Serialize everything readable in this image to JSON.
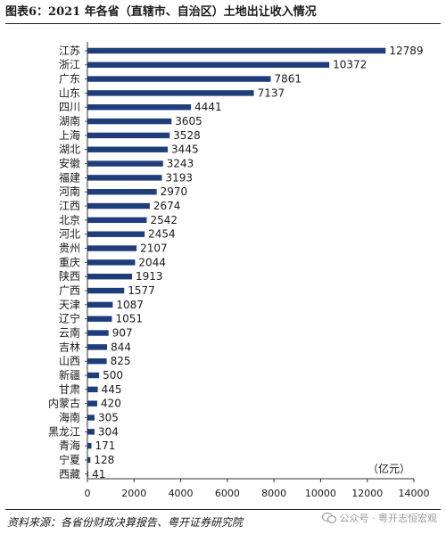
{
  "figure": {
    "title": "图表6：2021 年各省（直辖市、自治区）土地出让收入情况",
    "source": "资料来源：各省份财政决算报告、粤开证券研究院",
    "watermark": "公众号 · 粤开志恒宏观"
  },
  "chart_data": {
    "type": "bar",
    "orientation": "horizontal",
    "title": "图表6：2021 年各省（直辖市、自治区）土地出让收入情况",
    "unit": "（亿元）",
    "categories": [
      "江苏",
      "浙江",
      "广东",
      "山东",
      "四川",
      "湖南",
      "上海",
      "湖北",
      "安徽",
      "福建",
      "河南",
      "江西",
      "北京",
      "河北",
      "贵州",
      "重庆",
      "陕西",
      "广西",
      "天津",
      "辽宁",
      "云南",
      "吉林",
      "山西",
      "新疆",
      "甘肃",
      "内蒙古",
      "海南",
      "黑龙江",
      "青海",
      "宁夏",
      "西藏"
    ],
    "values": [
      12789,
      10372,
      7861,
      7137,
      4441,
      3605,
      3528,
      3445,
      3243,
      3193,
      2970,
      2674,
      2542,
      2454,
      2107,
      2044,
      1913,
      1577,
      1087,
      1051,
      907,
      844,
      825,
      500,
      445,
      420,
      305,
      304,
      171,
      128,
      41
    ],
    "xlim": [
      0,
      14000
    ],
    "xticks": [
      0,
      2000,
      4000,
      6000,
      8000,
      10000,
      12000,
      14000
    ],
    "bar_color": "#1f3d7a",
    "grid": false,
    "data_labels": true
  }
}
